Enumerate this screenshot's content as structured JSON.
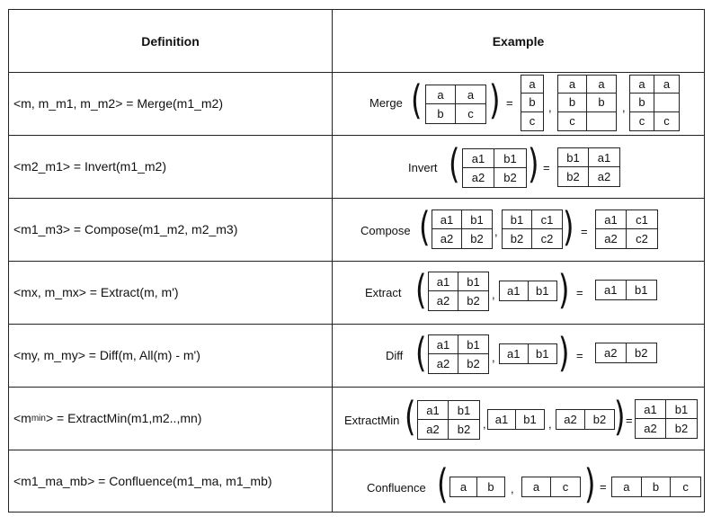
{
  "header": {
    "definition": "Definition",
    "example": "Example"
  },
  "rows": [
    {
      "definition": "<m, m_m1, m_m2> = Merge(m1_m2)",
      "label": "Merge",
      "input": [
        [
          "a",
          "a"
        ],
        [
          "b",
          "c"
        ]
      ],
      "outputs": [
        [
          [
            "a"
          ],
          [
            "b"
          ],
          [
            "c"
          ]
        ],
        [
          [
            "a",
            "a"
          ],
          [
            "b",
            "b"
          ],
          [
            "c",
            ""
          ]
        ],
        [
          [
            "a",
            "a"
          ],
          [
            "b",
            ""
          ],
          [
            "c",
            "c"
          ]
        ]
      ]
    },
    {
      "definition": "<m2_m1> = Invert(m1_m2)",
      "label": "Invert",
      "input": [
        [
          "a1",
          "b1"
        ],
        [
          "a2",
          "b2"
        ]
      ],
      "output": [
        [
          "b1",
          "a1"
        ],
        [
          "b2",
          "a2"
        ]
      ]
    },
    {
      "definition": "<m1_m3> = Compose(m1_m2, m2_m3)",
      "label": "Compose",
      "inputs": [
        [
          [
            "a1",
            "b1"
          ],
          [
            "a2",
            "b2"
          ]
        ],
        [
          [
            "b1",
            "c1"
          ],
          [
            "b2",
            "c2"
          ]
        ]
      ],
      "output": [
        [
          "a1",
          "c1"
        ],
        [
          "a2",
          "c2"
        ]
      ]
    },
    {
      "definition": "<mx, m_mx> = Extract(m, m')",
      "label": "Extract",
      "inputs": [
        [
          [
            "a1",
            "b1"
          ],
          [
            "a2",
            "b2"
          ]
        ],
        [
          [
            "a1",
            "b1"
          ]
        ]
      ],
      "output": [
        [
          "a1",
          "b1"
        ]
      ]
    },
    {
      "definition": "<my, m_my> = Diff(m, All(m) - m')",
      "label": "Diff",
      "inputs": [
        [
          [
            "a1",
            "b1"
          ],
          [
            "a2",
            "b2"
          ]
        ],
        [
          [
            "a1",
            "b1"
          ]
        ]
      ],
      "output": [
        [
          "a2",
          "b2"
        ]
      ]
    },
    {
      "definition_pre": "<m",
      "definition_sub": "min",
      "definition_post": "> = ExtractMin(m1,m2..,mn)",
      "label": "ExtractMin",
      "inputs": [
        [
          [
            "a1",
            "b1"
          ],
          [
            "a2",
            "b2"
          ]
        ],
        [
          [
            "a1",
            "b1"
          ]
        ],
        [
          [
            "a2",
            "b2"
          ]
        ]
      ],
      "output": [
        [
          "a1",
          "b1"
        ],
        [
          "a2",
          "b2"
        ]
      ]
    },
    {
      "definition": "<m1_ma_mb> = Confluence(m1_ma, m1_mb)",
      "label": "Confluence",
      "inputs": [
        [
          [
            "a",
            "b"
          ]
        ],
        [
          [
            "a",
            "c"
          ]
        ]
      ],
      "output": [
        [
          "a",
          "b",
          "c"
        ]
      ]
    }
  ],
  "symbols": {
    "equals": "=",
    "comma": ","
  }
}
